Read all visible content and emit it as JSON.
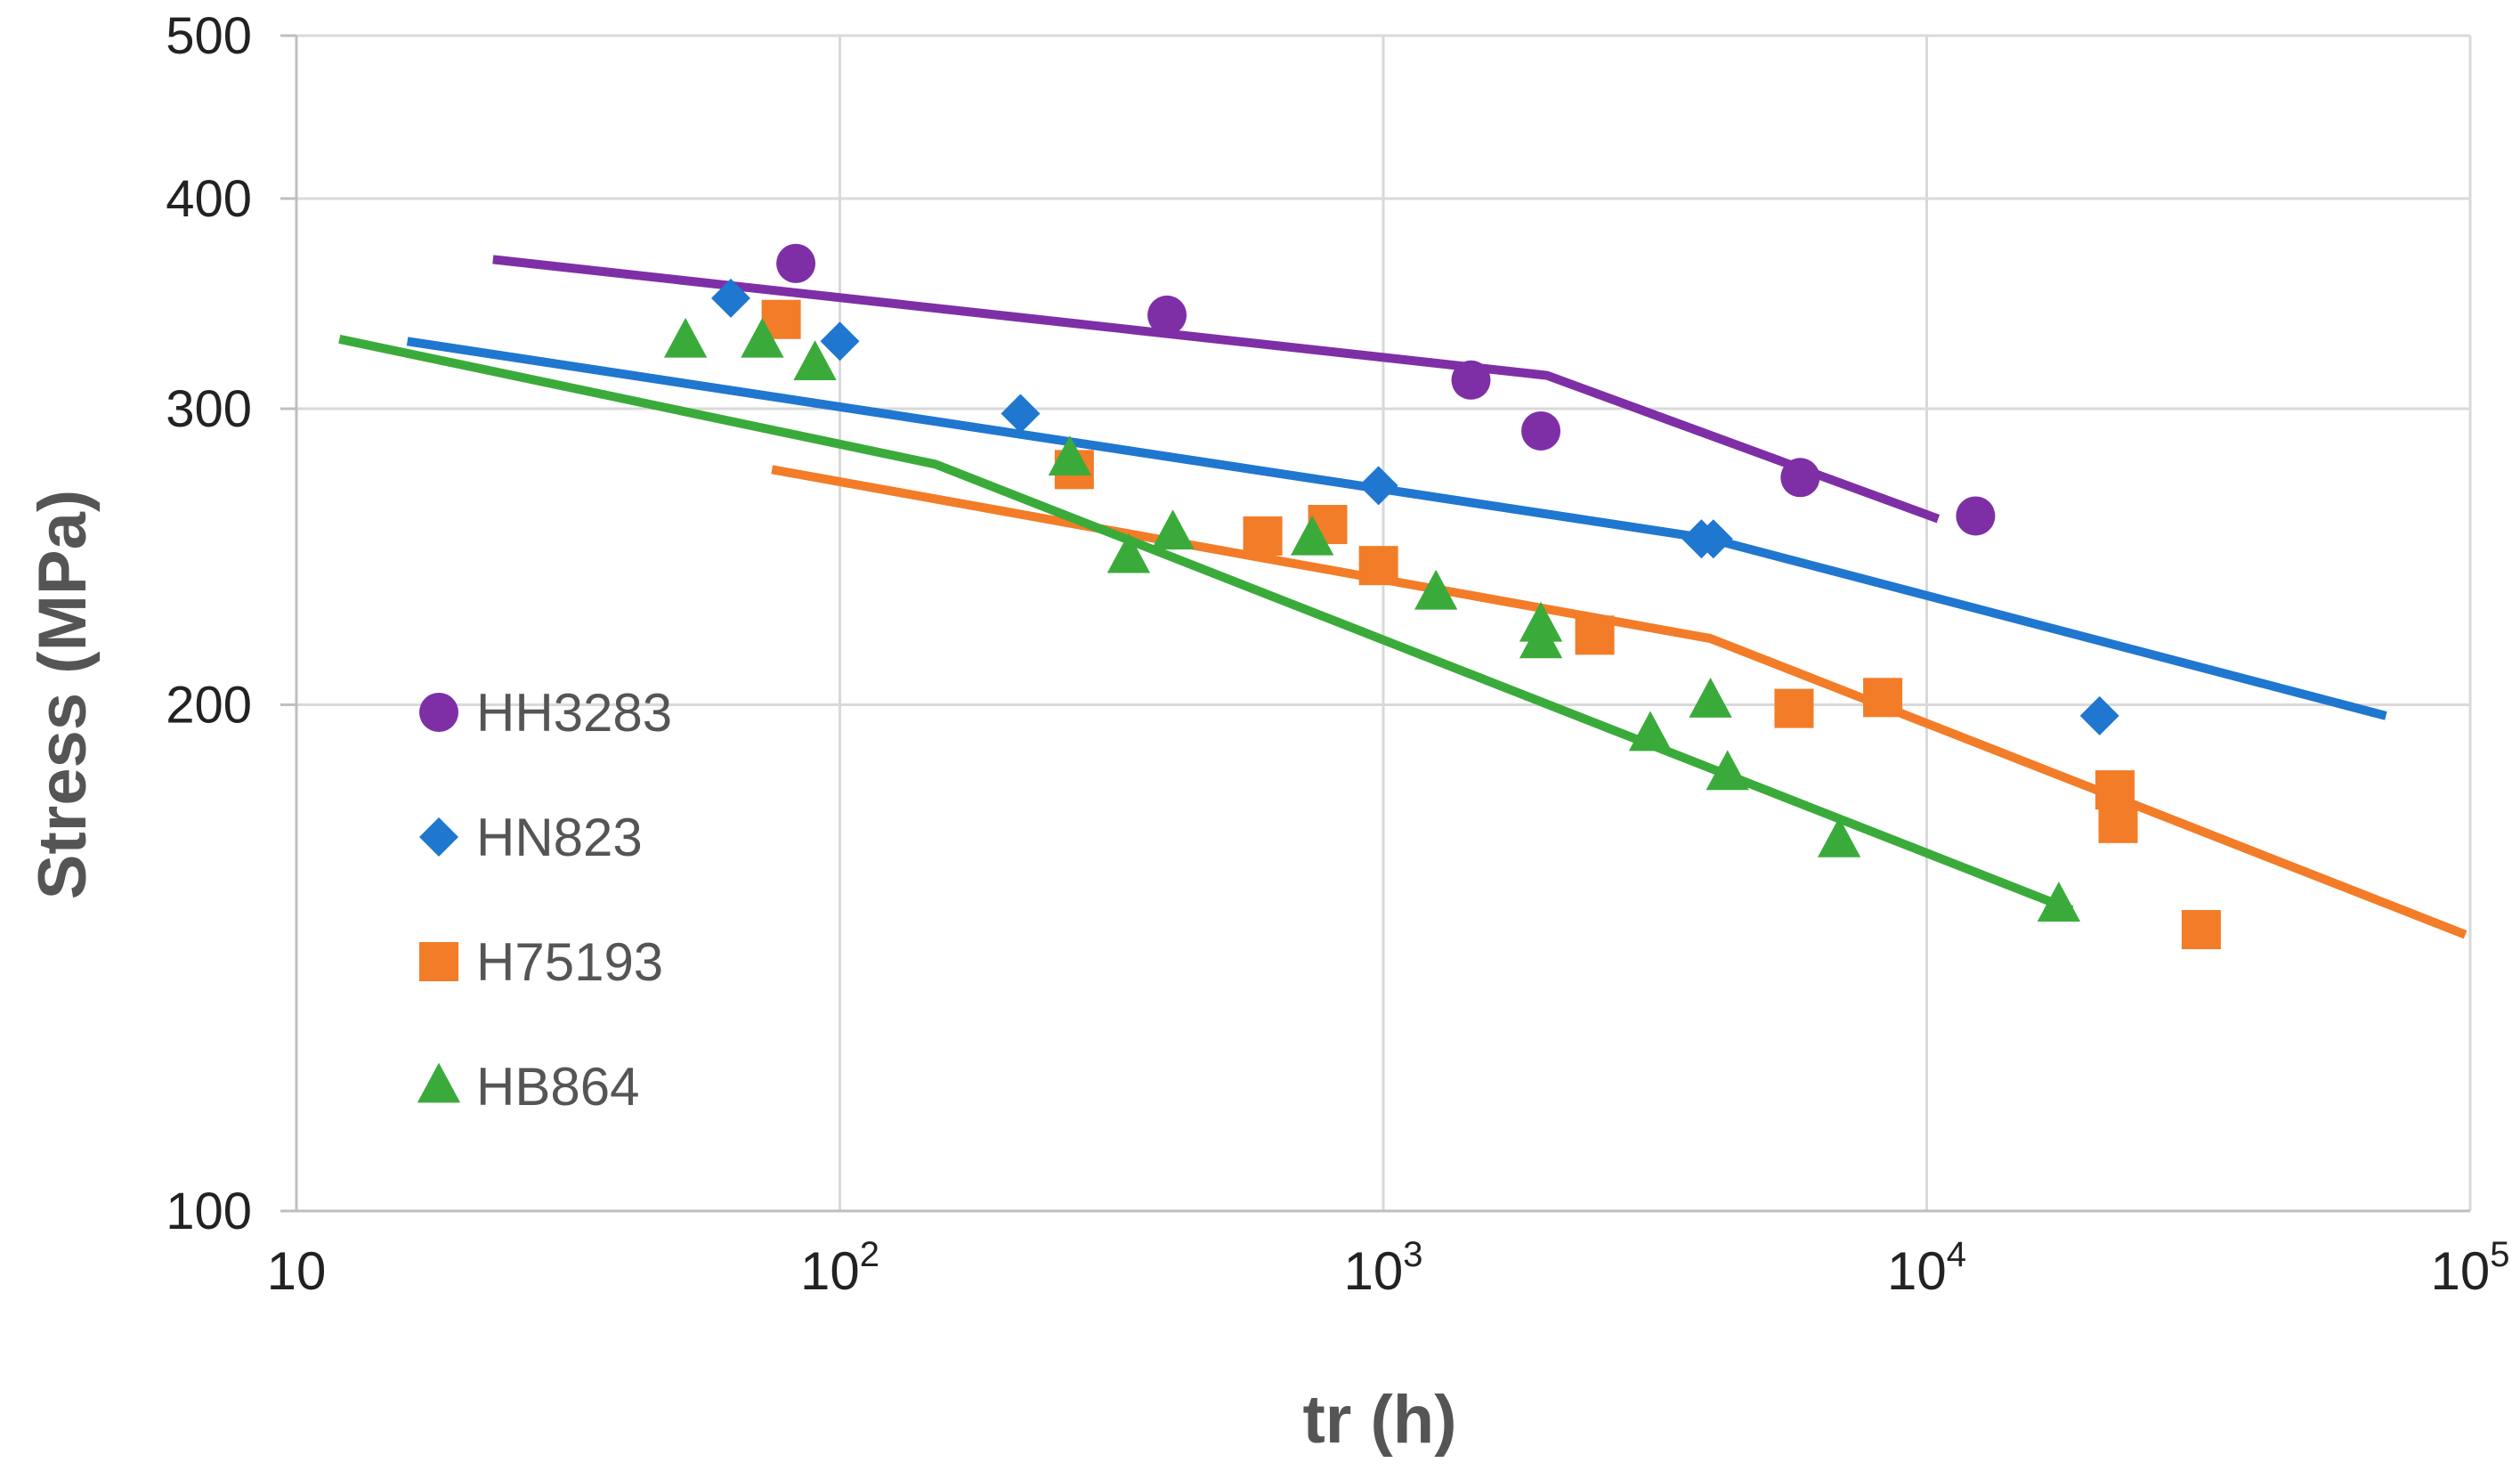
{
  "chart_data": {
    "type": "scatter",
    "xscale": "log",
    "yscale": "log",
    "xlabel": "tr (h)",
    "ylabel": "Stress (MPa)",
    "xlim": [
      10,
      100000
    ],
    "ylim": [
      100,
      500
    ],
    "grid": true,
    "legend_position": "left",
    "x_ticks": [
      {
        "value": 10,
        "base": "10",
        "exp": ""
      },
      {
        "value": 100,
        "base": "10",
        "exp": "2"
      },
      {
        "value": 1000,
        "base": "10",
        "exp": "3"
      },
      {
        "value": 10000,
        "base": "10",
        "exp": "4"
      },
      {
        "value": 100000,
        "base": "10",
        "exp": "5"
      }
    ],
    "y_ticks": [
      {
        "value": 100,
        "label": "100"
      },
      {
        "value": 200,
        "label": "200"
      },
      {
        "value": 300,
        "label": "300"
      },
      {
        "value": 400,
        "label": "400"
      },
      {
        "value": 500,
        "label": "500"
      }
    ],
    "series": [
      {
        "name": "HH3283",
        "marker": "circle",
        "color": "#7e2fa6",
        "points": [
          [
            83,
            366
          ],
          [
            400,
            341
          ],
          [
            1450,
            312
          ],
          [
            1950,
            291
          ],
          [
            5850,
            273
          ],
          [
            12300,
            259
          ]
        ],
        "fit_line": [
          [
            23,
            368
          ],
          [
            2000,
            314
          ],
          [
            10500,
            258
          ]
        ]
      },
      {
        "name": "HN823",
        "marker": "diamond",
        "color": "#1f77cf",
        "points": [
          [
            63,
            349
          ],
          [
            100,
            329
          ],
          [
            215,
            298
          ],
          [
            980,
            270
          ],
          [
            3850,
            251
          ],
          [
            4050,
            251
          ],
          [
            20800,
            197
          ]
        ],
        "fit_line": [
          [
            16,
            329
          ],
          [
            4000,
            251
          ],
          [
            70000,
            197
          ]
        ]
      },
      {
        "name": "H75193",
        "marker": "square",
        "color": "#f37c28",
        "points": [
          [
            78,
            339
          ],
          [
            270,
            276
          ],
          [
            600,
            252
          ],
          [
            790,
            256
          ],
          [
            980,
            242
          ],
          [
            2450,
            220
          ],
          [
            5700,
            199
          ],
          [
            8300,
            202
          ],
          [
            22200,
            178
          ],
          [
            22500,
            170
          ],
          [
            32000,
            147
          ]
        ],
        "fit_line": [
          [
            75,
            276
          ],
          [
            4000,
            219
          ],
          [
            98000,
            146
          ]
        ]
      },
      {
        "name": "HB864",
        "marker": "triangle",
        "color": "#3aab3a",
        "points": [
          [
            52,
            329
          ],
          [
            72,
            329
          ],
          [
            90,
            319
          ],
          [
            265,
            280
          ],
          [
            340,
            245
          ],
          [
            410,
            253
          ],
          [
            740,
            251
          ],
          [
            1250,
            233
          ],
          [
            1950,
            223
          ],
          [
            1950,
            218
          ],
          [
            3100,
            192
          ],
          [
            4000,
            201
          ],
          [
            4300,
            182
          ],
          [
            6900,
            166
          ],
          [
            17500,
            152
          ]
        ],
        "fit_line": [
          [
            12,
            330
          ],
          [
            150,
            278
          ],
          [
            18500,
            151
          ]
        ]
      }
    ]
  }
}
